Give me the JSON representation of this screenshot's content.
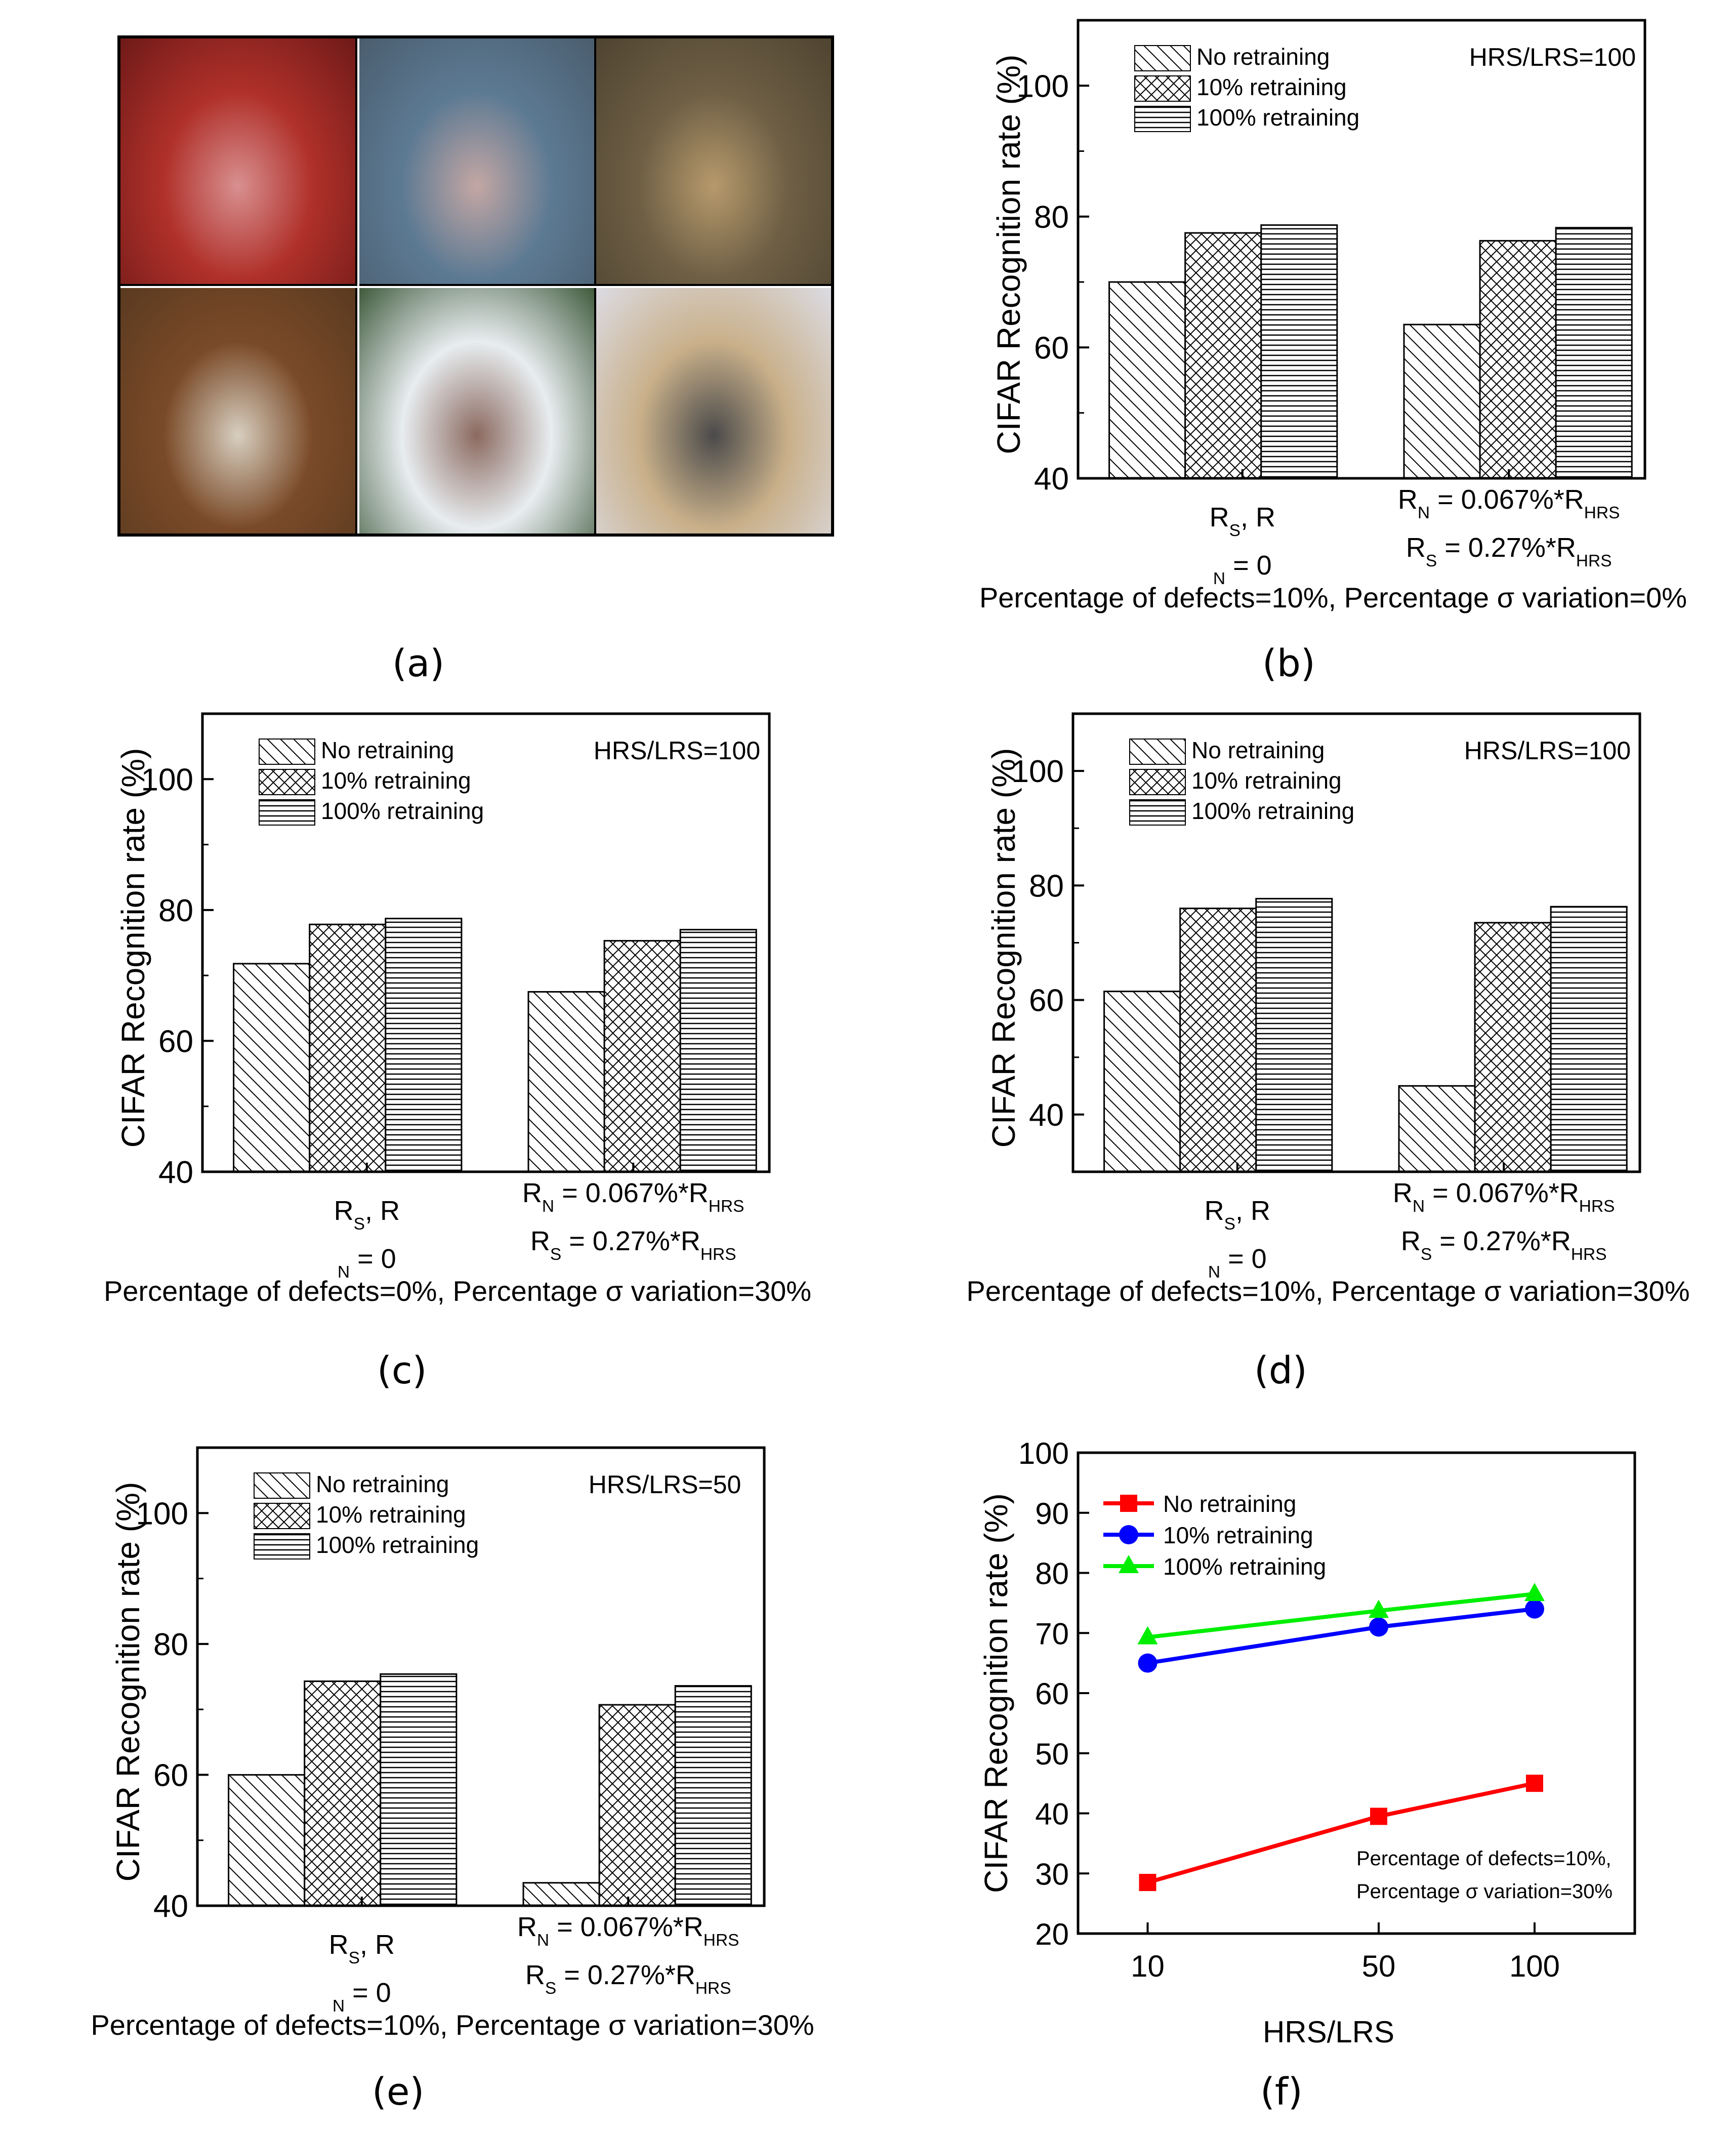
{
  "panel_labels": [
    "(a)",
    "(b)",
    "(c)",
    "(d)",
    "(e)",
    "(f)"
  ],
  "image_grid": {
    "cells": [
      {
        "subject": "red car",
        "colors": [
          "#b0302a",
          "#6e1a18",
          "#d89090"
        ]
      },
      {
        "subject": "blue car",
        "colors": [
          "#5d7a93",
          "#4a5d6e",
          "#c4a7a4"
        ]
      },
      {
        "subject": "deer",
        "colors": [
          "#6e5f45",
          "#4f4431",
          "#b79a6c"
        ]
      },
      {
        "subject": "frog",
        "colors": [
          "#7a4a28",
          "#5a3a20",
          "#d8cfc0"
        ]
      },
      {
        "subject": "bird",
        "colors": [
          "#e8edf0",
          "#3f5a3c",
          "#8b6a60"
        ]
      },
      {
        "subject": "truck",
        "colors": [
          "#c9b08a",
          "#dcdce4",
          "#4a4a4a"
        ]
      }
    ]
  },
  "chart_data": [
    {
      "type": "bar",
      "panel": "b",
      "ylabel": "CIFAR Recognition rate (%)",
      "ylim": [
        40,
        110
      ],
      "yticks": [
        40,
        60,
        80,
        100
      ],
      "annotation": "HRS/LRS=100",
      "xlabel": "Percentage of defects=10%, Percentage σ variation=0%",
      "groups": [
        {
          "lines": [
            {
              "main": "R",
              "sub": "S",
              "tail": ", R"
            },
            {
              "main": "",
              "sub": "N",
              "tail": " = 0"
            }
          ]
        },
        {
          "lines": [
            {
              "main": "R",
              "sub": "N",
              "tail": " = 0.067%*R",
              "sub2": "HRS"
            },
            {
              "main": "R",
              "sub": "S",
              "tail": " = 0.27%*R",
              "sub2": "HRS"
            }
          ]
        }
      ],
      "series": [
        {
          "name": "No retraining",
          "values": [
            70.0,
            63.5
          ]
        },
        {
          "name": "10% retraining",
          "values": [
            77.5,
            76.3
          ]
        },
        {
          "name": "100% retraining",
          "values": [
            78.7,
            78.3
          ]
        }
      ]
    },
    {
      "type": "bar",
      "panel": "c",
      "ylabel": "CIFAR Recognition rate (%)",
      "ylim": [
        40,
        110
      ],
      "yticks": [
        40,
        60,
        80,
        100
      ],
      "annotation": "HRS/LRS=100",
      "xlabel": "Percentage of defects=0%, Percentage σ variation=30%",
      "series": [
        {
          "name": "No retraining",
          "values": [
            71.8,
            67.5
          ]
        },
        {
          "name": "10% retraining",
          "values": [
            77.8,
            75.3
          ]
        },
        {
          "name": "100% retraining",
          "values": [
            78.7,
            77.0
          ]
        }
      ]
    },
    {
      "type": "bar",
      "panel": "d",
      "ylabel": "CIFAR Recognition rate (%)",
      "ylim": [
        30,
        110
      ],
      "yticks": [
        40,
        60,
        80,
        100
      ],
      "annotation": "HRS/LRS=100",
      "xlabel": "Percentage of defects=10%, Percentage σ variation=30%",
      "series": [
        {
          "name": "No retraining",
          "values": [
            61.5,
            45.0
          ]
        },
        {
          "name": "10% retraining",
          "values": [
            76.0,
            73.5
          ]
        },
        {
          "name": "100% retraining",
          "values": [
            77.7,
            76.3
          ]
        }
      ]
    },
    {
      "type": "bar",
      "panel": "e",
      "ylabel": "CIFAR Recognition rate (%)",
      "ylim": [
        40,
        110
      ],
      "yticks": [
        40,
        60,
        80,
        100
      ],
      "annotation": "HRS/LRS=50",
      "xlabel": "Percentage of defects=10%, Percentage σ variation=30%",
      "series": [
        {
          "name": "No retraining",
          "values": [
            60.0,
            43.5
          ]
        },
        {
          "name": "10% retraining",
          "values": [
            74.3,
            70.7
          ]
        },
        {
          "name": "100% retraining",
          "values": [
            75.4,
            73.6
          ]
        }
      ]
    },
    {
      "type": "line",
      "panel": "f",
      "ylabel": "CIFAR Recognition rate (%)",
      "xlabel": "HRS/LRS",
      "ylim": [
        20,
        100
      ],
      "yticks": [
        20,
        30,
        40,
        50,
        60,
        70,
        80,
        90,
        100
      ],
      "xlim": [
        0,
        120
      ],
      "x": [
        10,
        50,
        100
      ],
      "xtick_labels": [
        "10",
        "50",
        "100"
      ],
      "annotation_lines": [
        "Percentage of defects=10%,",
        "Percentage σ variation=30%"
      ],
      "series": [
        {
          "name": "No retraining",
          "values": [
            28.5,
            39.5,
            45.0
          ],
          "color": "#ff0000",
          "marker": "square"
        },
        {
          "name": "10% retraining",
          "values": [
            65.0,
            71.0,
            74.0
          ],
          "color": "#0000ff",
          "marker": "circle"
        },
        {
          "name": "100% retraining",
          "values": [
            69.3,
            73.7,
            76.5
          ],
          "color": "#00ee00",
          "marker": "triangle"
        }
      ]
    }
  ]
}
